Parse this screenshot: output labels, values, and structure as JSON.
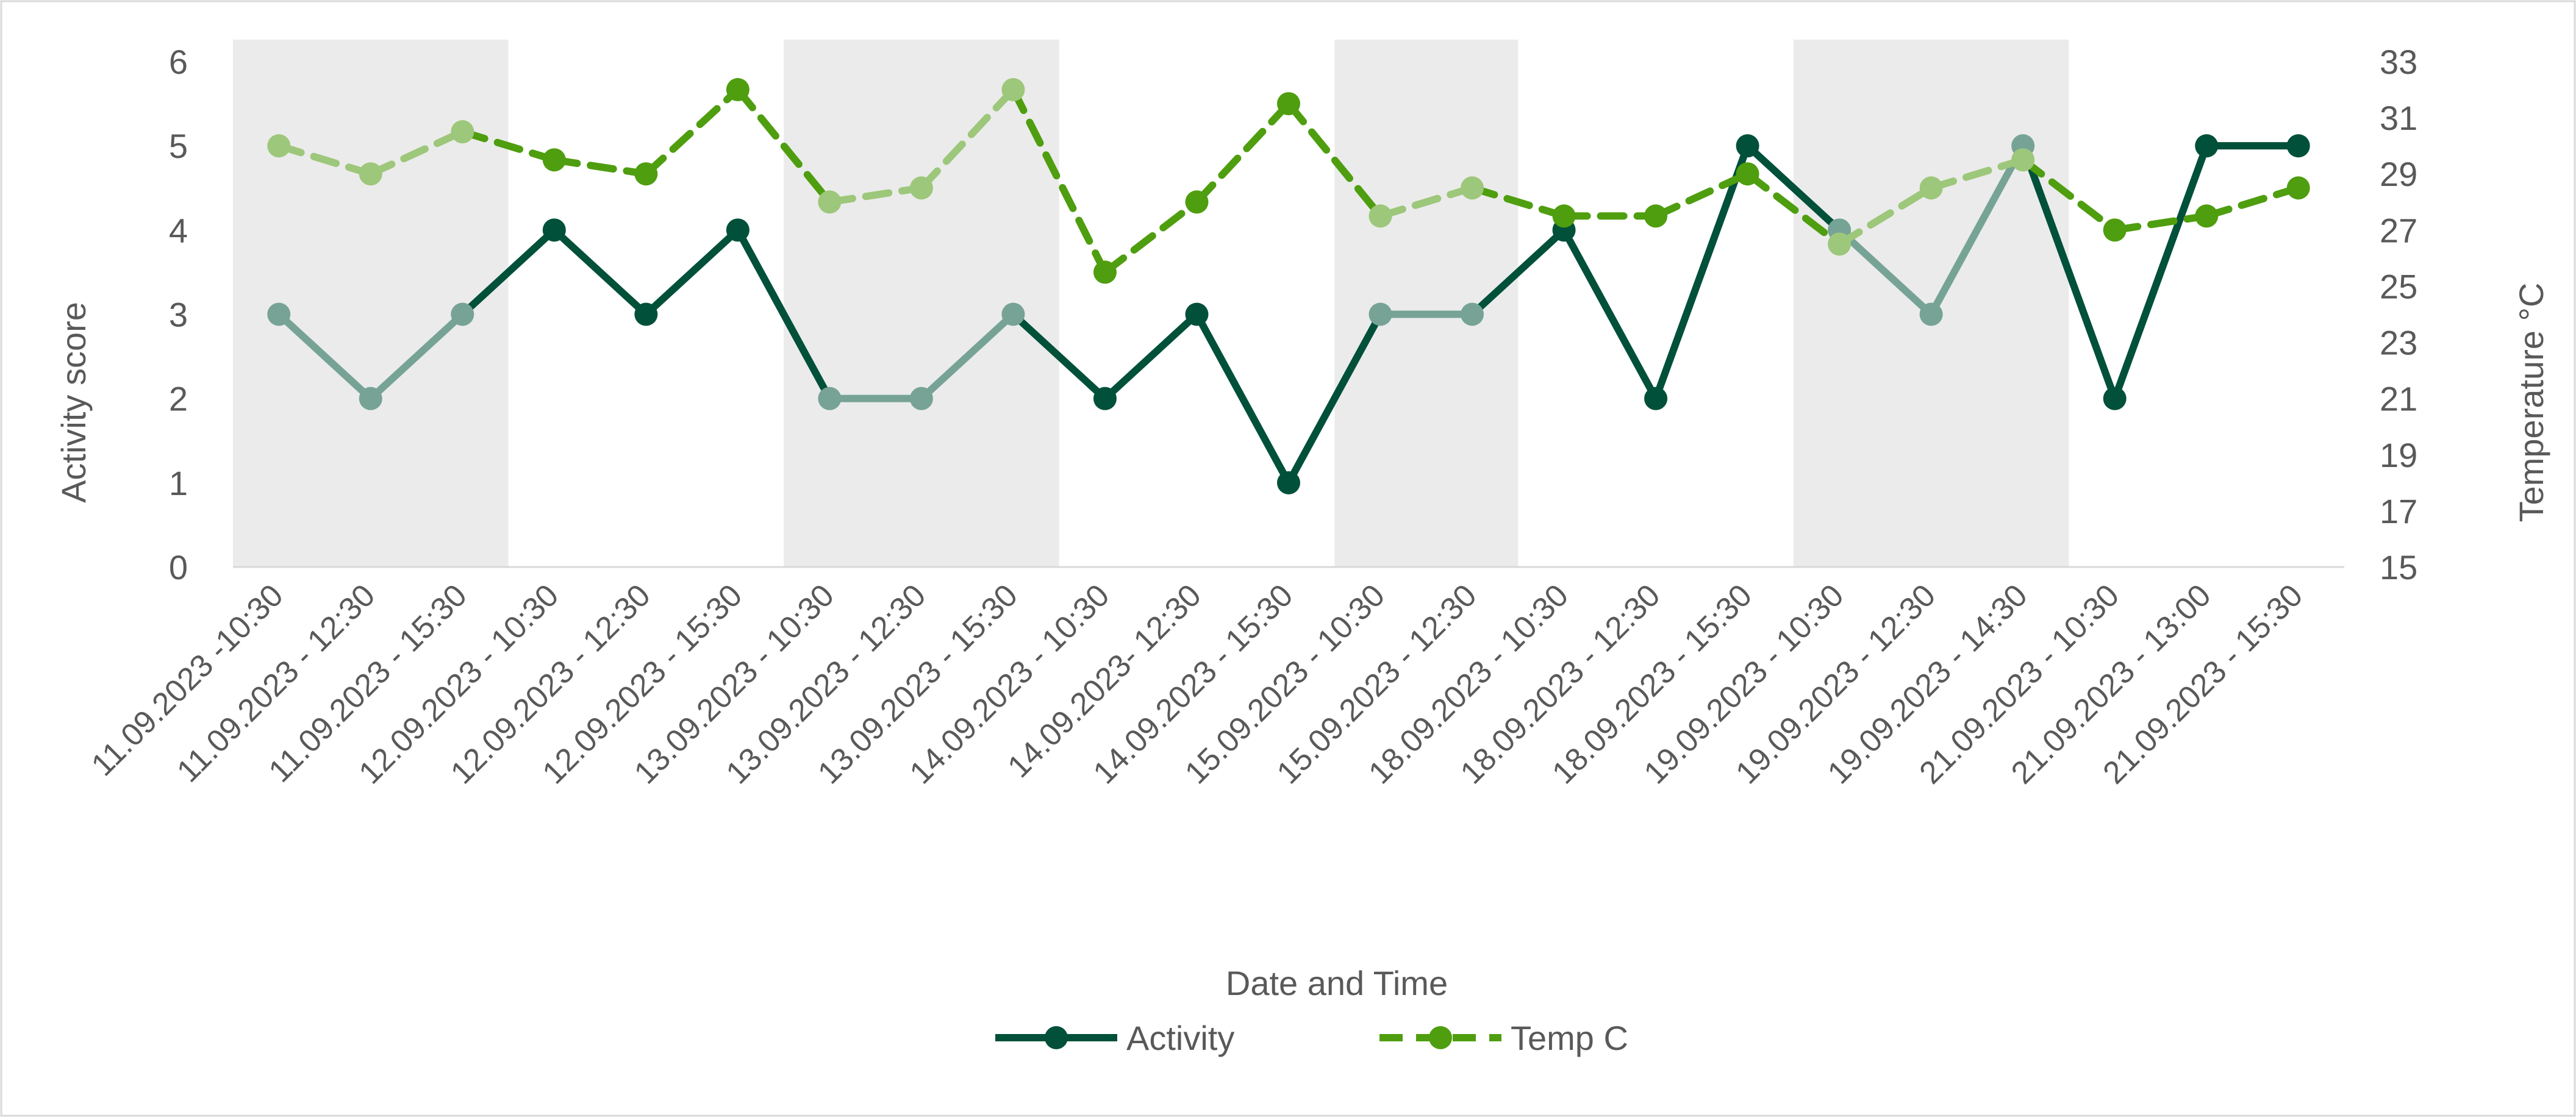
{
  "chart_data": {
    "type": "line",
    "xlabel": "Date and Time",
    "ylabel": "Activity score",
    "y2label": "Temperature °C",
    "ylim": [
      0,
      6
    ],
    "y2lim": [
      15,
      33
    ],
    "yticks": [
      "0",
      "1",
      "2",
      "3",
      "4",
      "5",
      "6"
    ],
    "y2ticks": [
      "15",
      "17",
      "19",
      "21",
      "23",
      "25",
      "27",
      "29",
      "31",
      "33"
    ],
    "categories": [
      "11.09.2023 -10:30",
      "11.09.2023 - 12:30",
      "11.09.2023 - 15:30",
      "12.09.2023 - 10:30",
      "12.09.2023 - 12:30",
      "12.09.2023 - 15:30",
      "13.09.2023 - 10:30",
      "13.09.2023 - 12:30",
      "13.09.2023 - 15:30",
      "14.09.2023 - 10:30",
      "14.09.2023- 12:30",
      "14.09.2023 - 15:30",
      "15.09.2023 - 10:30",
      "15.09.2023 - 12:30",
      "18.09.2023 - 10:30",
      "18.09.2023 - 12:30",
      "18.09.2023 - 15:30",
      "19.09.2023 - 10:30",
      "19.09.2023 - 12:30",
      "19.09.2023 - 14:30",
      "21.09.2023 - 10:30",
      "21.09.2023 - 13:00",
      "21.09.2023 - 15:30"
    ],
    "series": [
      {
        "name": "Activity",
        "axis": "left",
        "color": "#00503A",
        "shaded_color": "#76A395",
        "style": "solid",
        "values": [
          3,
          2,
          3,
          4,
          3,
          4,
          2,
          2,
          3,
          2,
          3,
          1,
          3,
          3,
          4,
          2,
          5,
          4,
          3,
          5,
          2,
          5,
          5
        ]
      },
      {
        "name": "Temp C",
        "axis": "right",
        "color": "#4E9E0F",
        "shaded_color": "#9DC77A",
        "style": "dashed",
        "values": [
          30,
          29,
          30.5,
          29.5,
          29,
          32,
          28,
          28.5,
          32,
          25.5,
          28,
          31.5,
          27.5,
          28.5,
          27.5,
          27.5,
          29,
          26.5,
          28.5,
          29.5,
          27,
          27.5,
          28.5
        ]
      }
    ],
    "shaded_bands": [
      [
        0,
        2
      ],
      [
        6,
        8
      ],
      [
        12,
        13
      ],
      [
        17,
        19
      ]
    ],
    "shade_color": "#EBEBEB",
    "legend_position": "bottom"
  }
}
